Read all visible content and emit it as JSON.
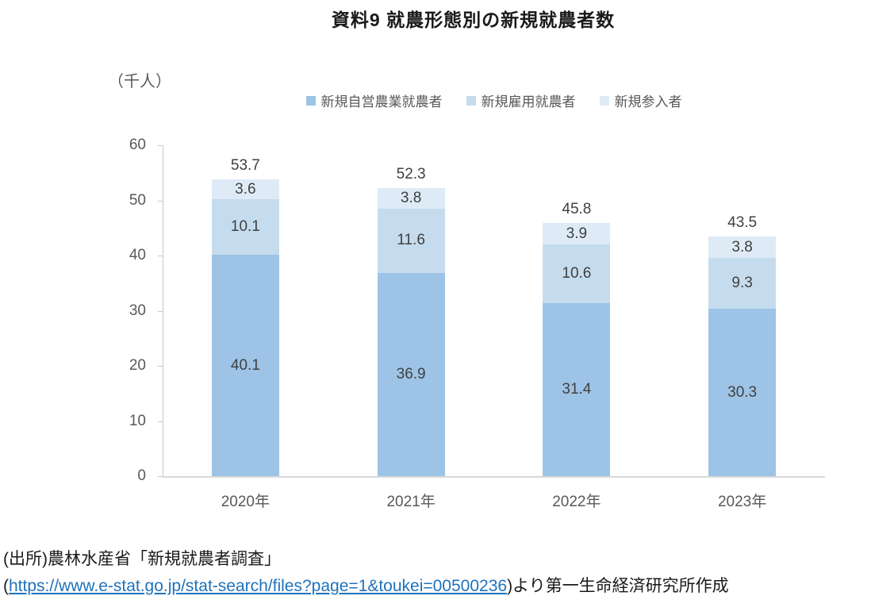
{
  "title": "資料9 就農形態別の新規就農者数",
  "chart_data": {
    "type": "bar",
    "stacked": true,
    "title": "資料9 就農形態別の新規就農者数",
    "unit_label": "（千人）",
    "categories": [
      "2020年",
      "2021年",
      "2022年",
      "2023年"
    ],
    "series": [
      {
        "name": "新規自営農業就農者",
        "color": "#9DC3E6",
        "values": [
          40.1,
          36.9,
          31.4,
          30.3
        ]
      },
      {
        "name": "新規雇用就農者",
        "color": "#C5DCEE",
        "values": [
          10.1,
          11.6,
          10.6,
          9.3
        ]
      },
      {
        "name": "新規参入者",
        "color": "#DEEBF7",
        "values": [
          3.6,
          3.8,
          3.9,
          3.8
        ]
      }
    ],
    "totals": [
      "53.7",
      "52.3",
      "45.8",
      "43.5"
    ],
    "xlabel": "",
    "ylabel": "（千人）",
    "ylim": [
      0,
      60
    ],
    "yticks": [
      0,
      10,
      20,
      30,
      40,
      50,
      60
    ],
    "grid": false,
    "legend_position": "top"
  },
  "source": {
    "line1": "(出所)農林水産省「新規就農者調査」",
    "line2_prefix": "(",
    "link": "https://www.e-stat.go.jp/stat-search/files?page=1&toukei=00500236",
    "line2_suffix": ")より第一生命経済研究所作成"
  }
}
